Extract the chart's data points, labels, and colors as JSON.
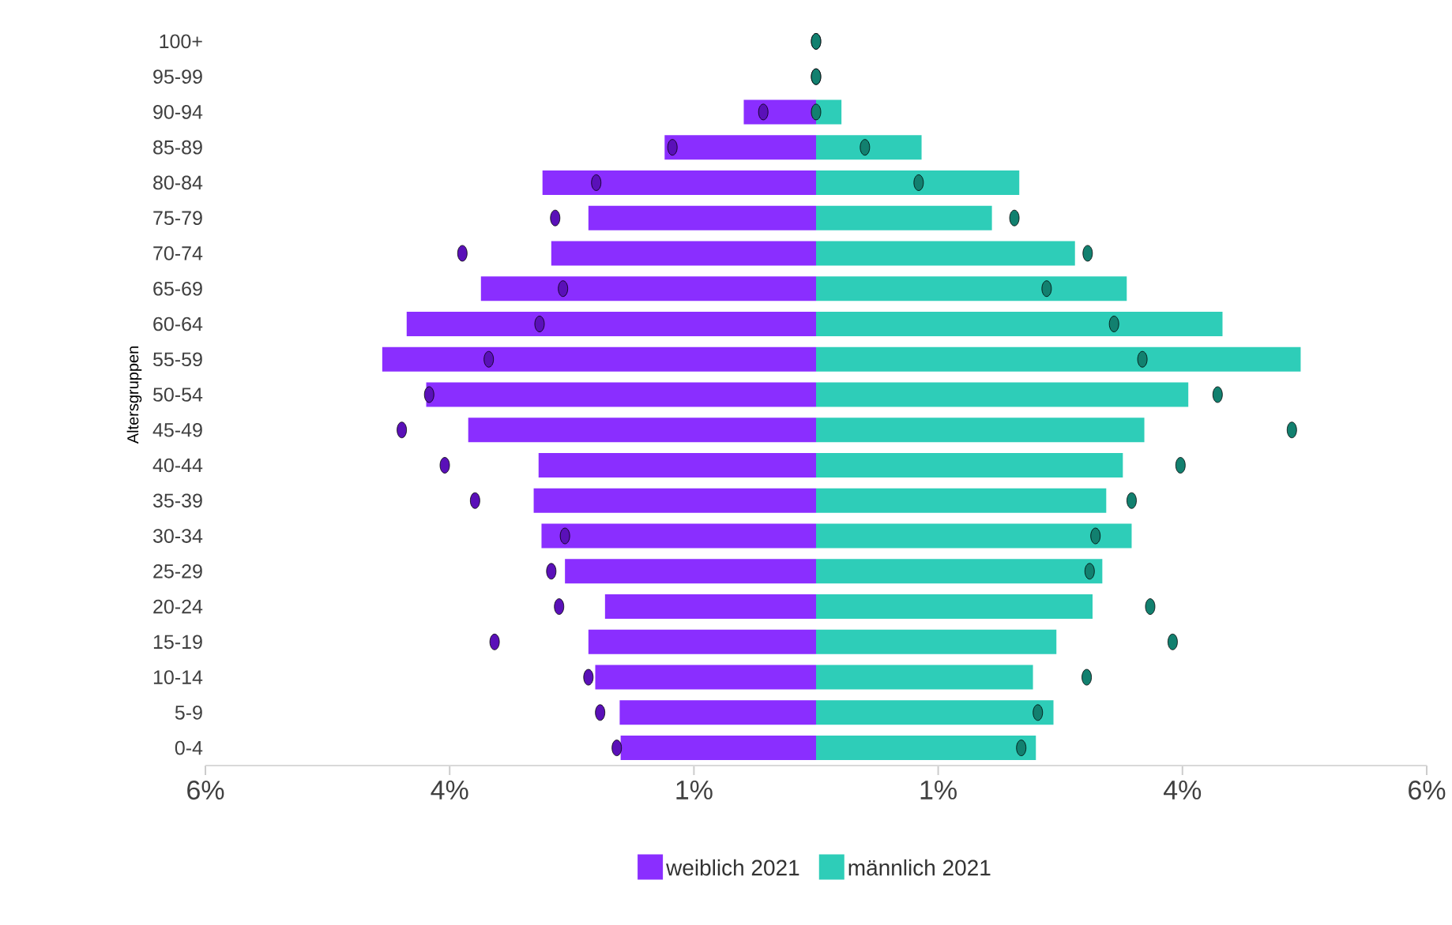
{
  "chart_data": {
    "type": "bar",
    "orientation": "horizontal",
    "ylabel": "Altersgruppen",
    "categories": [
      "100+",
      "95-99",
      "90-94",
      "85-89",
      "80-84",
      "75-79",
      "70-74",
      "65-69",
      "60-64",
      "55-59",
      "50-54",
      "45-49",
      "40-44",
      "35-39",
      "30-34",
      "25-29",
      "20-24",
      "15-19",
      "10-14",
      "5-9",
      "0-4"
    ],
    "xlim": [
      -6.25,
      6.25
    ],
    "xticks": [
      {
        "value": -6.25,
        "label": "6%"
      },
      {
        "value": -3.75,
        "label": "4%"
      },
      {
        "value": -1.25,
        "label": "1%"
      },
      {
        "value": 1.25,
        "label": "1%"
      },
      {
        "value": 3.75,
        "label": "4%"
      },
      {
        "value": 6.25,
        "label": "6%"
      }
    ],
    "legend": "bottom",
    "stacked": true,
    "series": [
      {
        "name": "weiblich 2021",
        "color": "#8a2eff",
        "values": [
          0,
          0,
          -0.74,
          -1.55,
          -2.8,
          -2.33,
          -2.71,
          -3.43,
          -4.19,
          -4.44,
          -3.99,
          -3.56,
          -2.84,
          -2.89,
          -2.81,
          -2.57,
          -2.16,
          -2.33,
          -2.26,
          -2.01,
          -2.0
        ]
      },
      {
        "name": "männlich 2021",
        "color": "#2ecdb8",
        "values": [
          0,
          0,
          0.26,
          1.08,
          2.08,
          1.8,
          2.65,
          3.18,
          4.16,
          4.96,
          3.81,
          3.36,
          3.14,
          2.97,
          3.23,
          2.93,
          2.83,
          2.46,
          2.22,
          2.43,
          2.25
        ]
      },
      {
        "type": "scatter",
        "color": "#5a10b8",
        "values": [
          0,
          0,
          -0.54,
          -1.47,
          -2.25,
          -2.67,
          -3.62,
          -2.59,
          -2.83,
          -3.35,
          -3.96,
          -4.24,
          -3.8,
          -3.49,
          -2.57,
          -2.71,
          -2.63,
          -3.29,
          -2.33,
          -2.21,
          -2.04
        ]
      },
      {
        "type": "scatter",
        "color": "#12806f",
        "values": [
          0,
          0,
          0,
          0.5,
          1.05,
          2.03,
          2.78,
          2.36,
          3.05,
          3.34,
          4.11,
          4.87,
          3.73,
          3.23,
          2.86,
          2.8,
          3.42,
          3.65,
          2.77,
          2.27,
          2.1
        ]
      }
    ]
  }
}
